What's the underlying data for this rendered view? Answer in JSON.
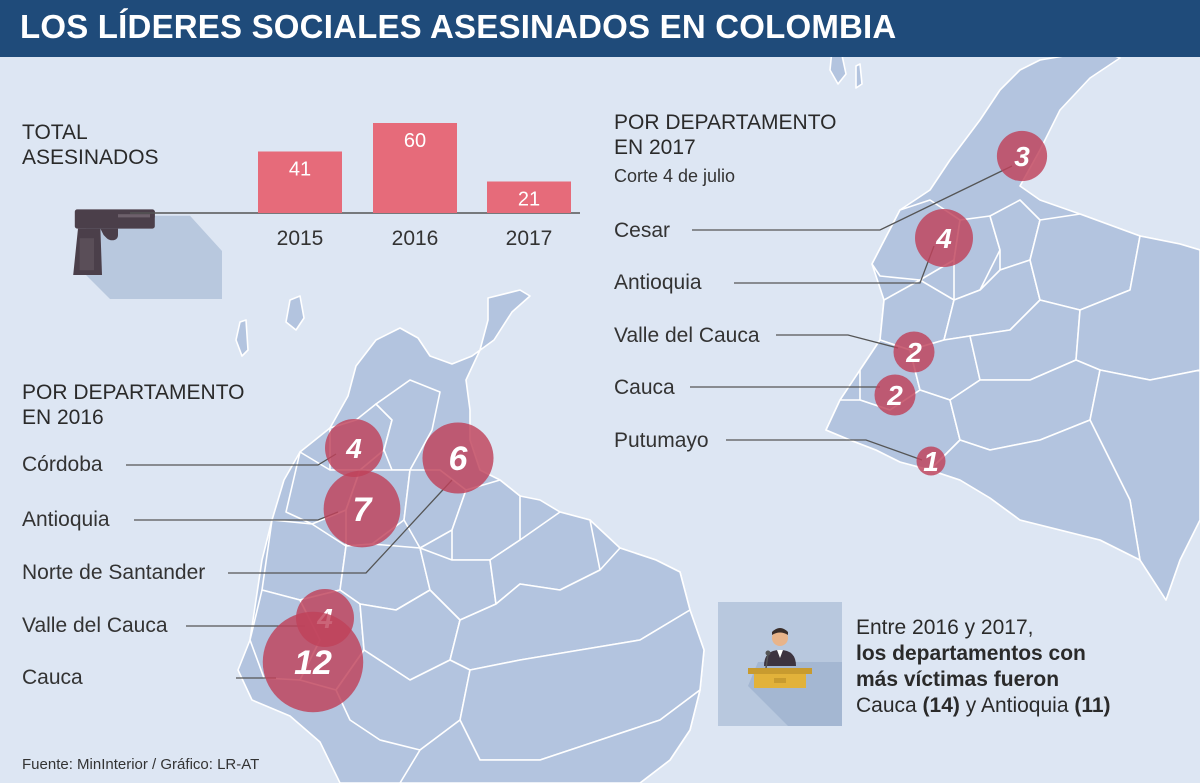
{
  "title": "LOS LÍDERES SOCIALES ASESINADOS EN COLOMBIA",
  "total": {
    "heading_line1": "TOTAL",
    "heading_line2": "ASESINADOS"
  },
  "chart_data": [
    {
      "type": "bar",
      "title": "TOTAL ASESINADOS",
      "categories": [
        "2015",
        "2016",
        "2017"
      ],
      "values": [
        41,
        60,
        21
      ],
      "color": "#e66b7a"
    },
    {
      "type": "bubble-map",
      "title": "POR DEPARTAMENTO EN 2016",
      "categories": [
        "Córdoba",
        "Antioquia",
        "Norte de Santander",
        "Valle del Cauca",
        "Cauca"
      ],
      "values": [
        4,
        7,
        6,
        4,
        12
      ],
      "color": "#c0425a"
    },
    {
      "type": "bubble-map",
      "title": "POR DEPARTAMENTO EN 2017",
      "subtitle": "Corte 4 de julio",
      "categories": [
        "Cesar",
        "Antioquia",
        "Valle del Cauca",
        "Cauca",
        "Putumayo"
      ],
      "values": [
        3,
        4,
        2,
        2,
        1
      ],
      "color": "#c0425a"
    }
  ],
  "dept2016": {
    "heading_line1": "POR DEPARTAMENTO",
    "heading_line2": "EN 2016"
  },
  "dept2017": {
    "heading_line1": "POR DEPARTAMENTO",
    "heading_line2": "EN 2017",
    "subtitle": "Corte 4 de julio"
  },
  "note": {
    "line1": "Entre 2016 y 2017,",
    "line2": "los departamentos con",
    "line3": "más víctimas fueron",
    "cauca_label": "Cauca",
    "cauca_value": "(14)",
    "joiner": "y",
    "antioquia_label": "Antioquia",
    "antioquia_value": "(11)"
  },
  "source": "Fuente: MinInterior / Gráfico: LR-AT",
  "colors": {
    "header": "#1f4b7a",
    "background": "#dde6f3",
    "map_fill": "#b3c4df",
    "bar": "#e66b7a",
    "bubble": "#c0425a"
  },
  "icons": [
    "pistol-icon",
    "speaker-podium-icon"
  ]
}
